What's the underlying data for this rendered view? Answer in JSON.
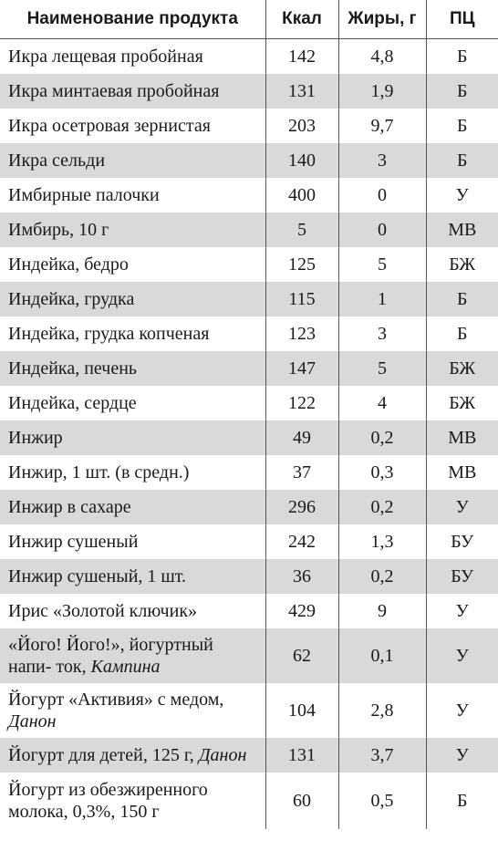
{
  "table": {
    "headers": {
      "name": "Наименование продукта",
      "kcal": "Ккал",
      "fat": "Жиры, г",
      "pc": "ПЦ"
    },
    "rows": [
      {
        "name": "Икра лещевая пробойная",
        "brand": "",
        "kcal": "142",
        "fat": "4,8",
        "pc": "Б"
      },
      {
        "name": "Икра минтаевая пробойная",
        "brand": "",
        "kcal": "131",
        "fat": "1,9",
        "pc": "Б"
      },
      {
        "name": "Икра осетровая зернистая",
        "brand": "",
        "kcal": "203",
        "fat": "9,7",
        "pc": "Б"
      },
      {
        "name": "Икра сельди",
        "brand": "",
        "kcal": "140",
        "fat": "3",
        "pc": "Б"
      },
      {
        "name": "Имбирные палочки",
        "brand": "",
        "kcal": "400",
        "fat": "0",
        "pc": "У"
      },
      {
        "name": "Имбирь, 10 г",
        "brand": "",
        "kcal": "5",
        "fat": "0",
        "pc": "МВ"
      },
      {
        "name": "Индейка, бедро",
        "brand": "",
        "kcal": "125",
        "fat": "5",
        "pc": "БЖ"
      },
      {
        "name": "Индейка, грудка",
        "brand": "",
        "kcal": "115",
        "fat": "1",
        "pc": "Б"
      },
      {
        "name": "Индейка, грудка копченая",
        "brand": "",
        "kcal": "123",
        "fat": "3",
        "pc": "Б"
      },
      {
        "name": "Индейка, печень",
        "brand": "",
        "kcal": "147",
        "fat": "5",
        "pc": "БЖ"
      },
      {
        "name": "Индейка, сердце",
        "brand": "",
        "kcal": "122",
        "fat": "4",
        "pc": "БЖ"
      },
      {
        "name": "Инжир",
        "brand": "",
        "kcal": "49",
        "fat": "0,2",
        "pc": "МВ"
      },
      {
        "name": "Инжир, 1 шт. (в средн.)",
        "brand": "",
        "kcal": "37",
        "fat": "0,3",
        "pc": "МВ"
      },
      {
        "name": "Инжир в сахаре",
        "brand": "",
        "kcal": "296",
        "fat": "0,2",
        "pc": "У"
      },
      {
        "name": "Инжир сушеный",
        "brand": "",
        "kcal": "242",
        "fat": "1,3",
        "pc": "БУ"
      },
      {
        "name": "Инжир сушеный, 1 шт.",
        "brand": "",
        "kcal": "36",
        "fat": "0,2",
        "pc": "БУ"
      },
      {
        "name": "Ирис «Золотой ключик»",
        "brand": "",
        "kcal": "429",
        "fat": "9",
        "pc": "У"
      },
      {
        "name": "«Його! Його!», йогуртный напи- ток, ",
        "brand": "Кампина",
        "kcal": "62",
        "fat": "0,1",
        "pc": "У"
      },
      {
        "name": "Йогурт «Активия» с медом, ",
        "brand": "Данон",
        "kcal": "104",
        "fat": "2,8",
        "pc": "У"
      },
      {
        "name": "Йогурт для детей, 125 г, ",
        "brand": "Данон",
        "kcal": "131",
        "fat": "3,7",
        "pc": "У"
      },
      {
        "name": "Йогурт из обезжиренного молока, 0,3%, 150 г",
        "brand": "",
        "kcal": "60",
        "fat": "0,5",
        "pc": "Б"
      }
    ]
  }
}
